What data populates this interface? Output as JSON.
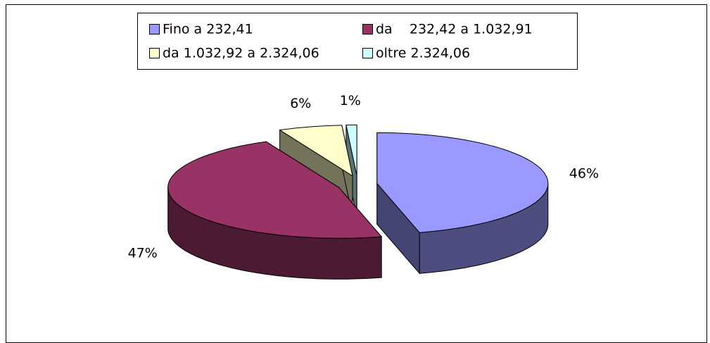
{
  "chart_data": {
    "type": "pie",
    "categories": [
      "Fino a 232,41",
      "da    232,42 a 1.032,91",
      "da 1.032,92 a 2.324,06",
      "oltre 2.324,06"
    ],
    "values": [
      46,
      47,
      6,
      1
    ],
    "value_labels": [
      "46%",
      "47%",
      "6%",
      "1%"
    ],
    "colors": [
      "#9999ff",
      "#993366",
      "#ffffcc",
      "#ccffff"
    ],
    "legend": "top"
  }
}
